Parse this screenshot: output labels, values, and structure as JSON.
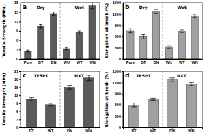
{
  "chart_data": [
    {
      "type": "bar",
      "title": "a",
      "y_label": "Tensile Strength (MPa)",
      "categories": [
        "Pure",
        "DT",
        "DN",
        "WU",
        "WT",
        "WN"
      ],
      "values": [
        2.5,
        10.5,
        14.5,
        3.3,
        8.5,
        17
      ],
      "errors": [
        0.3,
        0.6,
        0.5,
        0.4,
        0.5,
        0.9
      ],
      "color": "#5a5a5a",
      "ylim": [
        0,
        18
      ],
      "yticks": [
        0,
        3,
        6,
        9,
        12,
        15,
        18
      ],
      "groups": [
        {
          "label": "Dry",
          "size": 3
        },
        {
          "label": "Wet",
          "size": 3
        }
      ]
    },
    {
      "type": "bar",
      "title": "b",
      "y_label": "Elongation at break (%)",
      "categories": [
        "Pure",
        "DT",
        "DN",
        "WU",
        "WT",
        "WN"
      ],
      "values": [
        750,
        600,
        1270,
        330,
        740,
        1150
      ],
      "errors": [
        50,
        50,
        50,
        40,
        30,
        40
      ],
      "color": "#a0a0a0",
      "ylim": [
        0,
        1500
      ],
      "yticks": [
        0,
        300,
        600,
        900,
        1200,
        1500
      ],
      "groups": [
        {
          "label": "Dry",
          "size": 3
        },
        {
          "label": "Wet",
          "size": 3
        }
      ]
    },
    {
      "type": "bar",
      "title": "c",
      "y_label": "Tensile Strength (MPa)",
      "categories": [
        "DT",
        "WT",
        "DN",
        "WN"
      ],
      "values": [
        10.5,
        8.5,
        15,
        18.5
      ],
      "errors": [
        0.6,
        0.5,
        0.7,
        1.0
      ],
      "color": "#5a5a5a",
      "ylim": [
        0,
        21
      ],
      "yticks": [
        0,
        3,
        6,
        9,
        12,
        15,
        18,
        21
      ],
      "groups": [
        {
          "label": "TESPT",
          "size": 2
        },
        {
          "label": "NXT",
          "size": 2
        }
      ]
    },
    {
      "type": "bar",
      "title": "d",
      "y_label": "Elongation at break (%)",
      "categories": [
        "DT",
        "WT",
        "DN",
        "WN"
      ],
      "values": [
        600,
        750,
        1270,
        1160
      ],
      "errors": [
        50,
        30,
        50,
        40
      ],
      "color": "#a0a0a0",
      "ylim": [
        0,
        1500
      ],
      "yticks": [
        0,
        300,
        600,
        900,
        1200,
        1500
      ],
      "groups": [
        {
          "label": "TESPT",
          "size": 2
        },
        {
          "label": "NXT",
          "size": 2
        }
      ]
    }
  ]
}
